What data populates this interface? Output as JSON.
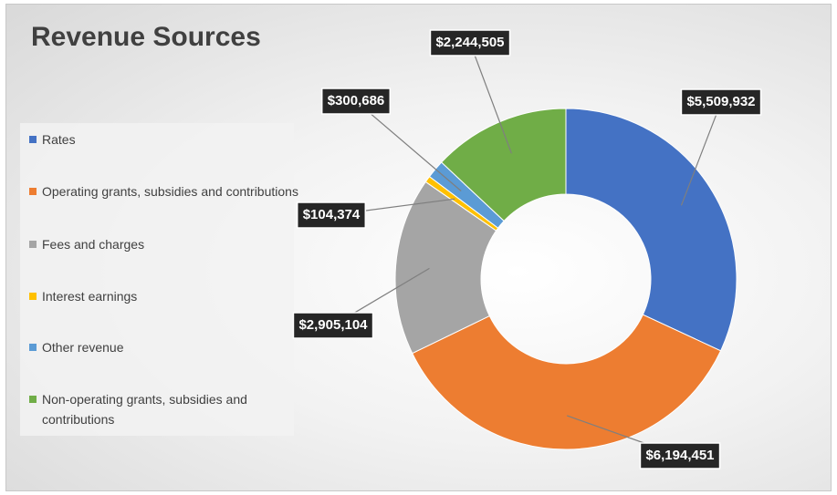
{
  "chart_data": {
    "type": "donut",
    "title": "Revenue Sources",
    "categories": [
      "Rates",
      "Operating grants, subsidies and contributions",
      "Fees and charges",
      "Interest earnings",
      "Other revenue",
      "Non-operating grants, subsidies and contributions"
    ],
    "values": [
      5509932,
      6194451,
      2905104,
      104374,
      300686,
      2244505
    ],
    "value_labels": [
      "$5,509,932",
      "$6,194,451",
      "$2,905,104",
      "$104,374",
      "$300,686",
      "$2,244,505"
    ],
    "colors": [
      "#4472c4",
      "#ed7d31",
      "#a5a5a5",
      "#ffc000",
      "#5b9bd5",
      "#70ad47"
    ],
    "legend": "left"
  }
}
